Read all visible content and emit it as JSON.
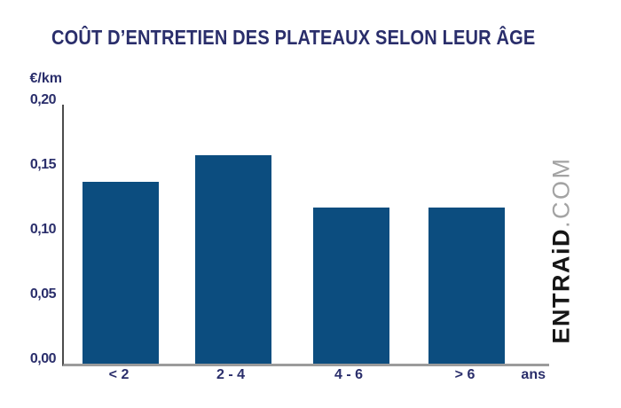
{
  "title": "COÛT D’ENTRETIEN DES PLATEAUX SELON LEUR ÂGE",
  "watermark": {
    "brand": "ENTRAiD",
    "suffix": ".COM"
  },
  "colors": {
    "title_text": "#2a2e6b",
    "axis_label_text": "#2a2e6b",
    "bar_fill": "#0c4d7f",
    "y_axis_line": "#4c4c4c",
    "x_axis_line": "#9b9b9b",
    "watermark_brand": "#161616",
    "watermark_suffix": "#a3a3a3",
    "background": "#ffffff"
  },
  "chart_data": {
    "type": "bar",
    "title": "COÛT D’ENTRETIEN DES PLATEAUX SELON LEUR ÂGE",
    "ylabel": "€/km",
    "xlabel": "ans",
    "categories": [
      "< 2",
      "2 - 4",
      "4 - 6",
      "> 6"
    ],
    "values": [
      0.14,
      0.16,
      0.12,
      0.12
    ],
    "ylim": [
      0,
      0.2
    ],
    "ytick_labels": [
      "0,20",
      "0,15",
      "0,10",
      "0,05",
      "0,00"
    ],
    "ytick_values": [
      0.2,
      0.15,
      0.1,
      0.05,
      0.0
    ],
    "number_format": "decimal-comma",
    "grid": false,
    "legend": false,
    "bar_color": "#0c4d7f"
  }
}
